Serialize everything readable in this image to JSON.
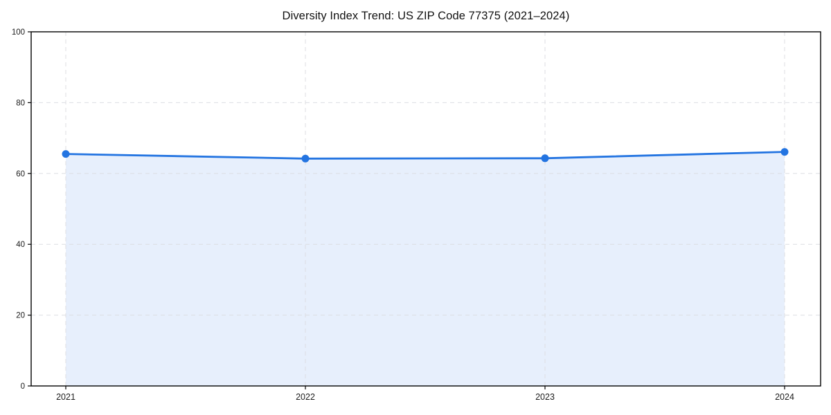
{
  "figure": {
    "background": "#ffffff"
  },
  "chart_data": {
    "type": "line",
    "title": "Diversity Index Trend: US ZIP Code 77375 (2021–2024)",
    "x": [
      2021,
      2022,
      2023,
      2024
    ],
    "x_labels": [
      "2021",
      "2022",
      "2023",
      "2024"
    ],
    "series": [
      {
        "name": "Diversity Index",
        "values": [
          65.5,
          64.2,
          64.3,
          66.1
        ]
      }
    ],
    "xlabel": "",
    "ylabel": "",
    "ylim": [
      0,
      100
    ],
    "yticks": [
      0,
      20,
      40,
      60,
      80,
      100
    ],
    "grid": "dashed",
    "legend": "none",
    "area_fill": true,
    "marker": "circle",
    "colors": {
      "line": "#2374e1",
      "marker": "#2374e1",
      "fill": "#e7effc",
      "grid": "#dcdee2",
      "axis": "#000000",
      "tick_label": "#1a1a1a",
      "title": "#111111",
      "background": "#ffffff"
    }
  }
}
